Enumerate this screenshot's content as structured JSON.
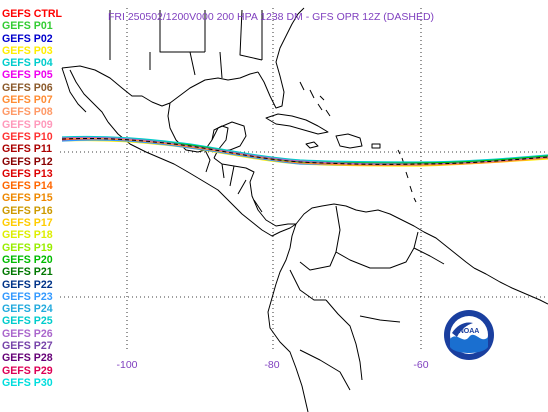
{
  "title": "FRI 250502/1200V000  200 HPA 1238 DM - GFS OPR 12Z (DASHED)",
  "legend": [
    {
      "label": "GEFS CTRL",
      "color": "#ff0000"
    },
    {
      "label": "GEFS P01",
      "color": "#33cc33"
    },
    {
      "label": "GEFS P02",
      "color": "#0000cc"
    },
    {
      "label": "GEFS P03",
      "color": "#ffee00"
    },
    {
      "label": "GEFS P04",
      "color": "#00cccc"
    },
    {
      "label": "GEFS P05",
      "color": "#ee00ee"
    },
    {
      "label": "GEFS P06",
      "color": "#8b5a2b"
    },
    {
      "label": "GEFS P07",
      "color": "#ff8c33"
    },
    {
      "label": "GEFS P08",
      "color": "#ff9966"
    },
    {
      "label": "GEFS P09",
      "color": "#ff99bb"
    },
    {
      "label": "GEFS P10",
      "color": "#ff3333"
    },
    {
      "label": "GEFS P11",
      "color": "#aa0000"
    },
    {
      "label": "GEFS P12",
      "color": "#880000"
    },
    {
      "label": "GEFS P13",
      "color": "#dd0000"
    },
    {
      "label": "GEFS P14",
      "color": "#ff6600"
    },
    {
      "label": "GEFS P15",
      "color": "#ee8800"
    },
    {
      "label": "GEFS P16",
      "color": "#cc9900"
    },
    {
      "label": "GEFS P17",
      "color": "#ffcc00"
    },
    {
      "label": "GEFS P18",
      "color": "#ddee00"
    },
    {
      "label": "GEFS P19",
      "color": "#99ee00"
    },
    {
      "label": "GEFS P20",
      "color": "#00bb00"
    },
    {
      "label": "GEFS P21",
      "color": "#007700"
    },
    {
      "label": "GEFS P22",
      "color": "#003388"
    },
    {
      "label": "GEFS P23",
      "color": "#3399ff"
    },
    {
      "label": "GEFS P24",
      "color": "#22aadd"
    },
    {
      "label": "GEFS P25",
      "color": "#00cccc"
    },
    {
      "label": "GEFS P26",
      "color": "#aa66cc"
    },
    {
      "label": "GEFS P27",
      "color": "#7744aa"
    },
    {
      "label": "GEFS P28",
      "color": "#660077"
    },
    {
      "label": "GEFS P29",
      "color": "#dd0055"
    },
    {
      "label": "GEFS P30",
      "color": "#00dddd"
    }
  ],
  "axis": {
    "longitude_ticks": [
      "-100",
      "-80",
      "-60"
    ],
    "label_color": "#7f3fbf"
  },
  "logo": {
    "text": "NOAA"
  },
  "colors": {
    "coastline": "#000000",
    "gridline": "#000000"
  }
}
